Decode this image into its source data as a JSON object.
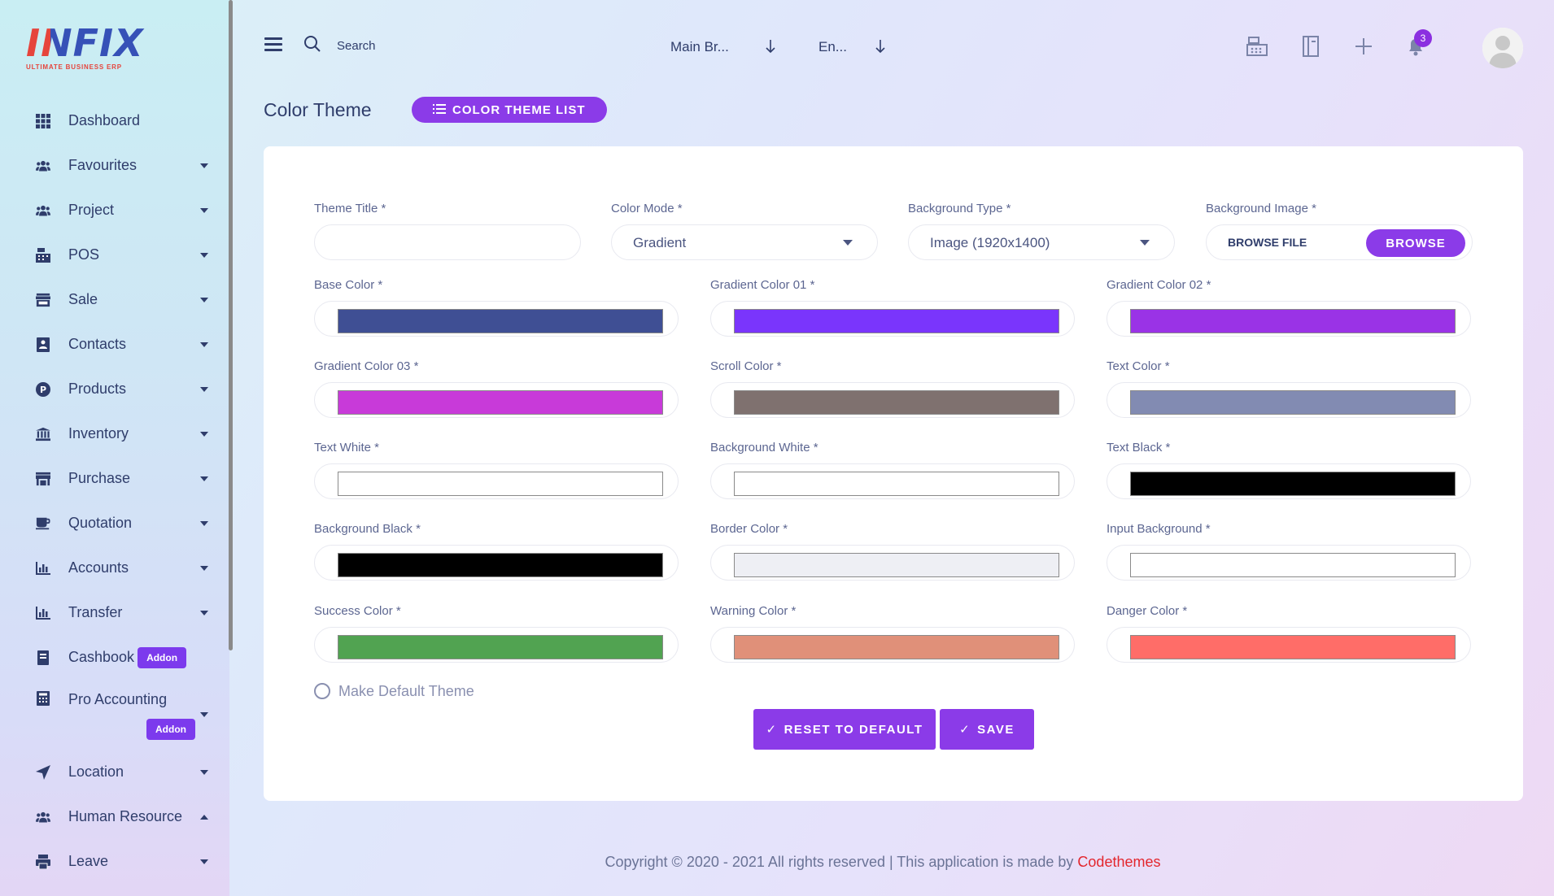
{
  "logo": {
    "text": "INFIX",
    "subtitle": "ULTIMATE BUSINESS ERP"
  },
  "sidebar": {
    "items": [
      {
        "label": "Dashboard",
        "icon": "grid-icon",
        "caret": ""
      },
      {
        "label": "Favourites",
        "icon": "users-icon",
        "caret": "down"
      },
      {
        "label": "Project",
        "icon": "users-icon",
        "caret": "down"
      },
      {
        "label": "POS",
        "icon": "cash-register-icon",
        "caret": "down"
      },
      {
        "label": "Sale",
        "icon": "store-icon",
        "caret": "down"
      },
      {
        "label": "Contacts",
        "icon": "contacts-icon",
        "caret": "down"
      },
      {
        "label": "Products",
        "icon": "product-icon",
        "caret": "down"
      },
      {
        "label": "Inventory",
        "icon": "bank-icon",
        "caret": "down"
      },
      {
        "label": "Purchase",
        "icon": "purchase-icon",
        "caret": "down"
      },
      {
        "label": "Quotation",
        "icon": "coffee-icon",
        "caret": "down"
      },
      {
        "label": "Accounts",
        "icon": "chart-icon",
        "caret": "down"
      },
      {
        "label": "Transfer",
        "icon": "chart-icon",
        "caret": "down"
      },
      {
        "label": "Cashbook",
        "icon": "book-icon",
        "caret": "",
        "badge": "Addon"
      },
      {
        "label": "Pro Accounting",
        "icon": "calculator-icon",
        "caret": "down",
        "badge": "Addon"
      },
      {
        "label": "Location",
        "icon": "location-icon",
        "caret": "down"
      },
      {
        "label": "Human Resource",
        "icon": "users-icon",
        "caret": "up"
      },
      {
        "label": "Leave",
        "icon": "printer-icon",
        "caret": "down"
      }
    ]
  },
  "header": {
    "search_label": "Search",
    "branch": "Main Br...",
    "language": "En...",
    "notification_count": "3"
  },
  "page": {
    "title": "Color Theme",
    "list_button": "COLOR THEME LIST"
  },
  "form": {
    "theme_title": {
      "label": "Theme Title *",
      "value": ""
    },
    "color_mode": {
      "label": "Color Mode *",
      "value": "Gradient"
    },
    "background_type": {
      "label": "Background Type *",
      "value": "Image (1920x1400)"
    },
    "background_image": {
      "label": "Background Image *",
      "placeholder": "BROWSE FILE",
      "button": "BROWSE"
    },
    "colors": [
      {
        "label": "Base Color *",
        "color": "#3f4f94"
      },
      {
        "label": "Gradient Color 01 *",
        "color": "#7a35fc"
      },
      {
        "label": "Gradient Color 02 *",
        "color": "#9a33e6"
      },
      {
        "label": "Gradient Color 03 *",
        "color": "#c83ad9"
      },
      {
        "label": "Scroll Color *",
        "color": "#7f716f"
      },
      {
        "label": "Text Color *",
        "color": "#828bb2"
      },
      {
        "label": "Text White *",
        "color": "#ffffff"
      },
      {
        "label": "Background White *",
        "color": "#ffffff"
      },
      {
        "label": "Text Black *",
        "color": "#000000"
      },
      {
        "label": "Background Black *",
        "color": "#000000"
      },
      {
        "label": "Border Color *",
        "color": "#eeeff4"
      },
      {
        "label": "Input Background *",
        "color": "#ffffff"
      },
      {
        "label": "Success Color *",
        "color": "#51a351"
      },
      {
        "label": "Warning Color *",
        "color": "#e09079"
      },
      {
        "label": "Danger Color *",
        "color": "#ff6d68"
      }
    ],
    "default_checkbox": "Make Default Theme",
    "reset_button": "RESET TO DEFAULT",
    "save_button": "SAVE"
  },
  "footer": {
    "text": "Copyright © 2020 - 2021 All rights reserved | This application is made by ",
    "brand": "Codethemes",
    "brand_color": "#e3262d"
  }
}
